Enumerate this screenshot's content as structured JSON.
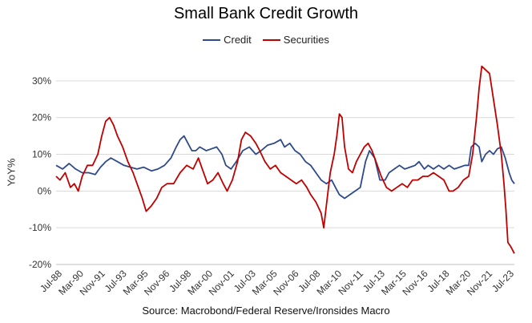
{
  "chart_data": {
    "type": "line",
    "title": "Small Bank Credit Growth",
    "xlabel": "",
    "ylabel": "YoY%",
    "source": "Source: Macrobond/Federal Reserve/Ironsides Macro",
    "x_tick_labels": [
      "Jul-88",
      "Mar-90",
      "Nov-91",
      "Jul-93",
      "Mar-95",
      "Nov-96",
      "Jul-98",
      "Mar-00",
      "Nov-01",
      "Jul-03",
      "Mar-05",
      "Nov-06",
      "Jul-08",
      "Mar-10",
      "Nov-11",
      "Jul-13",
      "Mar-15",
      "Nov-16",
      "Jul-18",
      "Mar-20",
      "Nov-21",
      "Jul-23"
    ],
    "y_ticks": [
      -20,
      -10,
      0,
      10,
      20,
      30
    ],
    "y_tick_labels": [
      "-20%",
      "-10%",
      "0%",
      "10%",
      "20%",
      "30%"
    ],
    "ylim": [
      -20,
      35
    ],
    "xlim": [
      1988.5,
      2023.6
    ],
    "grid": "horizontal",
    "legend_position": "top",
    "series": [
      {
        "name": "Credit",
        "color": "#2f4a8a",
        "points": [
          [
            1988.5,
            7
          ],
          [
            1989.0,
            6
          ],
          [
            1989.5,
            7.5
          ],
          [
            1990.0,
            6
          ],
          [
            1990.5,
            5
          ],
          [
            1991.0,
            5
          ],
          [
            1991.5,
            4.5
          ],
          [
            1991.9,
            6.5
          ],
          [
            1992.3,
            8
          ],
          [
            1992.7,
            9
          ],
          [
            1993.2,
            8
          ],
          [
            1993.7,
            7
          ],
          [
            1994.2,
            6.5
          ],
          [
            1994.7,
            6
          ],
          [
            1995.2,
            6.5
          ],
          [
            1995.8,
            5.5
          ],
          [
            1996.3,
            6
          ],
          [
            1996.8,
            7
          ],
          [
            1997.3,
            9
          ],
          [
            1997.7,
            12
          ],
          [
            1998.0,
            14
          ],
          [
            1998.3,
            15
          ],
          [
            1998.6,
            13
          ],
          [
            1998.9,
            11
          ],
          [
            1999.2,
            11
          ],
          [
            1999.5,
            12
          ],
          [
            2000.0,
            11
          ],
          [
            2000.4,
            11.5
          ],
          [
            2000.8,
            12
          ],
          [
            2001.2,
            10
          ],
          [
            2001.5,
            7
          ],
          [
            2001.9,
            6
          ],
          [
            2002.3,
            8
          ],
          [
            2002.8,
            11
          ],
          [
            2003.3,
            12
          ],
          [
            2003.8,
            10
          ],
          [
            2004.2,
            11
          ],
          [
            2004.7,
            12.5
          ],
          [
            2005.2,
            13
          ],
          [
            2005.7,
            14
          ],
          [
            2006.0,
            12
          ],
          [
            2006.4,
            13
          ],
          [
            2006.8,
            11
          ],
          [
            2007.2,
            10
          ],
          [
            2007.6,
            8
          ],
          [
            2008.0,
            7
          ],
          [
            2008.4,
            5
          ],
          [
            2008.8,
            3
          ],
          [
            2009.2,
            2
          ],
          [
            2009.6,
            3
          ],
          [
            2009.9,
            1
          ],
          [
            2010.2,
            -1
          ],
          [
            2010.6,
            -2
          ],
          [
            2011.0,
            -1
          ],
          [
            2011.4,
            0
          ],
          [
            2011.8,
            1
          ],
          [
            2012.2,
            8
          ],
          [
            2012.5,
            11
          ],
          [
            2012.9,
            9
          ],
          [
            2013.3,
            3
          ],
          [
            2013.7,
            3
          ],
          [
            2014.0,
            5
          ],
          [
            2014.4,
            6
          ],
          [
            2014.8,
            7
          ],
          [
            2015.2,
            6
          ],
          [
            2015.6,
            6.5
          ],
          [
            2016.0,
            7
          ],
          [
            2016.3,
            8
          ],
          [
            2016.7,
            6
          ],
          [
            2017.0,
            7
          ],
          [
            2017.4,
            6
          ],
          [
            2017.8,
            7
          ],
          [
            2018.2,
            6
          ],
          [
            2018.6,
            7
          ],
          [
            2019.0,
            6
          ],
          [
            2019.4,
            6.5
          ],
          [
            2019.8,
            7
          ],
          [
            2020.1,
            7
          ],
          [
            2020.3,
            12
          ],
          [
            2020.6,
            13
          ],
          [
            2020.9,
            12
          ],
          [
            2021.1,
            8
          ],
          [
            2021.4,
            10
          ],
          [
            2021.7,
            11
          ],
          [
            2022.0,
            10
          ],
          [
            2022.3,
            11.5
          ],
          [
            2022.6,
            12
          ],
          [
            2022.9,
            9
          ],
          [
            2023.2,
            5
          ],
          [
            2023.4,
            3
          ],
          [
            2023.6,
            2
          ]
        ]
      },
      {
        "name": "Securities",
        "color": "#c00000",
        "points": [
          [
            1988.5,
            4
          ],
          [
            1988.8,
            3
          ],
          [
            1989.2,
            5
          ],
          [
            1989.6,
            1
          ],
          [
            1989.9,
            2
          ],
          [
            1990.2,
            0
          ],
          [
            1990.5,
            4
          ],
          [
            1990.9,
            7
          ],
          [
            1991.3,
            7
          ],
          [
            1991.7,
            10
          ],
          [
            1992.0,
            15
          ],
          [
            1992.3,
            19
          ],
          [
            1992.6,
            20
          ],
          [
            1992.9,
            18
          ],
          [
            1993.2,
            15
          ],
          [
            1993.6,
            12
          ],
          [
            1994.0,
            8
          ],
          [
            1994.4,
            5
          ],
          [
            1994.8,
            1
          ],
          [
            1995.1,
            -2
          ],
          [
            1995.4,
            -5.5
          ],
          [
            1995.8,
            -4
          ],
          [
            1996.2,
            -2
          ],
          [
            1996.6,
            1
          ],
          [
            1997.0,
            2
          ],
          [
            1997.5,
            2
          ],
          [
            1998.0,
            5
          ],
          [
            1998.5,
            7
          ],
          [
            1999.0,
            6
          ],
          [
            1999.4,
            9
          ],
          [
            1999.7,
            6
          ],
          [
            2000.1,
            2
          ],
          [
            2000.5,
            3
          ],
          [
            2000.9,
            5
          ],
          [
            2001.3,
            2
          ],
          [
            2001.6,
            0
          ],
          [
            2002.0,
            3
          ],
          [
            2002.4,
            8
          ],
          [
            2002.7,
            14
          ],
          [
            2003.0,
            16
          ],
          [
            2003.4,
            15
          ],
          [
            2003.8,
            13
          ],
          [
            2004.1,
            11
          ],
          [
            2004.5,
            8
          ],
          [
            2004.9,
            6
          ],
          [
            2005.3,
            7
          ],
          [
            2005.7,
            5
          ],
          [
            2006.1,
            4
          ],
          [
            2006.5,
            3
          ],
          [
            2006.9,
            2
          ],
          [
            2007.3,
            3
          ],
          [
            2007.7,
            1
          ],
          [
            2008.0,
            -1
          ],
          [
            2008.4,
            -3
          ],
          [
            2008.8,
            -6
          ],
          [
            2009.0,
            -10
          ],
          [
            2009.2,
            -4
          ],
          [
            2009.5,
            5
          ],
          [
            2009.8,
            10
          ],
          [
            2010.0,
            15
          ],
          [
            2010.2,
            21
          ],
          [
            2010.4,
            20
          ],
          [
            2010.6,
            12
          ],
          [
            2010.9,
            6
          ],
          [
            2011.2,
            5
          ],
          [
            2011.5,
            8
          ],
          [
            2011.8,
            10
          ],
          [
            2012.1,
            12
          ],
          [
            2012.4,
            13
          ],
          [
            2012.7,
            11
          ],
          [
            2013.0,
            8
          ],
          [
            2013.4,
            4
          ],
          [
            2013.8,
            1
          ],
          [
            2014.2,
            0
          ],
          [
            2014.6,
            1
          ],
          [
            2015.0,
            2
          ],
          [
            2015.4,
            1
          ],
          [
            2015.8,
            3
          ],
          [
            2016.2,
            3
          ],
          [
            2016.6,
            4
          ],
          [
            2017.0,
            4
          ],
          [
            2017.4,
            5
          ],
          [
            2017.8,
            4
          ],
          [
            2018.2,
            3
          ],
          [
            2018.6,
            0
          ],
          [
            2018.9,
            0
          ],
          [
            2019.3,
            1
          ],
          [
            2019.7,
            3
          ],
          [
            2020.1,
            4
          ],
          [
            2020.4,
            10
          ],
          [
            2020.7,
            20
          ],
          [
            2020.9,
            28
          ],
          [
            2021.1,
            34
          ],
          [
            2021.4,
            33
          ],
          [
            2021.7,
            32
          ],
          [
            2022.0,
            25
          ],
          [
            2022.3,
            18
          ],
          [
            2022.6,
            10
          ],
          [
            2022.8,
            2
          ],
          [
            2022.95,
            -5
          ],
          [
            2023.1,
            -14
          ],
          [
            2023.3,
            -15
          ],
          [
            2023.45,
            -16
          ],
          [
            2023.6,
            -17
          ]
        ]
      }
    ]
  }
}
